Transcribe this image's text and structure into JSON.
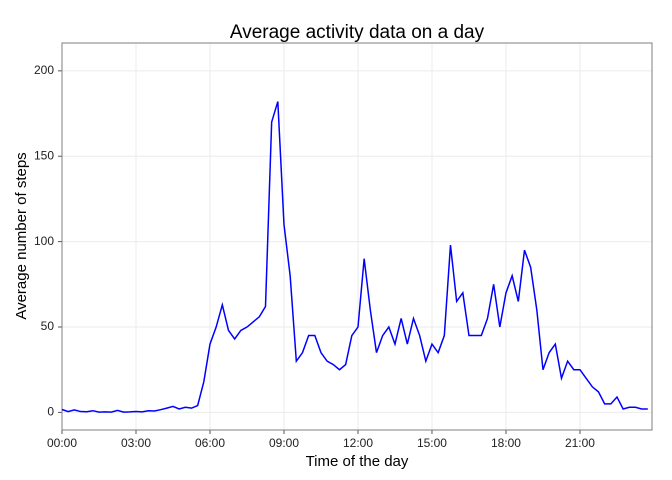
{
  "chart_data": {
    "type": "line",
    "title": "Average activity data on a day",
    "x_label": "Time of the day",
    "y_label": "Average number of steps",
    "x": [
      0,
      0.25,
      0.5,
      0.75,
      1,
      1.25,
      1.5,
      1.75,
      2,
      2.25,
      2.5,
      2.75,
      3,
      3.25,
      3.5,
      3.75,
      4,
      4.25,
      4.5,
      4.75,
      5,
      5.25,
      5.5,
      5.75,
      6,
      6.25,
      6.5,
      6.75,
      7,
      7.25,
      7.5,
      7.75,
      8,
      8.25,
      8.5,
      8.75,
      9,
      9.25,
      9.5,
      9.75,
      10,
      10.25,
      10.5,
      10.75,
      11,
      11.25,
      11.5,
      11.75,
      12,
      12.25,
      12.5,
      12.75,
      13,
      13.25,
      13.5,
      13.75,
      14,
      14.25,
      14.5,
      14.75,
      15,
      15.25,
      15.5,
      15.75,
      16,
      16.25,
      16.5,
      16.75,
      17,
      17.25,
      17.5,
      17.75,
      18,
      18.25,
      18.5,
      18.75,
      19,
      19.25,
      19.5,
      19.75,
      20,
      20.25,
      20.5,
      20.75,
      21,
      21.25,
      21.5,
      21.75,
      22,
      22.25,
      22.5,
      22.75,
      23,
      23.25,
      23.5,
      23.75
    ],
    "series": [
      {
        "name": "Average number of steps",
        "color": "#0000ff",
        "values": [
          1.7,
          0.5,
          1.5,
          0.5,
          0.4,
          1,
          0.2,
          0.3,
          0.2,
          1.2,
          0.2,
          0.3,
          0.5,
          0.3,
          1,
          0.8,
          1.6,
          2.5,
          3.5,
          2,
          3,
          2.5,
          4,
          18,
          40,
          50,
          63,
          48,
          43,
          48,
          50,
          53,
          56,
          62,
          170,
          182,
          110,
          80,
          30,
          35,
          45,
          45,
          35,
          30,
          28,
          25,
          28,
          45,
          50,
          90,
          60,
          35,
          45,
          50,
          40,
          55,
          40,
          55,
          45,
          30,
          40,
          35,
          45,
          98,
          65,
          70,
          45,
          45,
          45,
          55,
          75,
          50,
          70,
          80,
          65,
          95,
          85,
          60,
          25,
          35,
          40,
          20,
          30,
          25,
          25,
          20,
          15,
          12,
          5,
          5,
          9,
          2,
          3,
          3,
          2,
          2
        ]
      }
    ],
    "xlim": [
      0,
      23.92
    ],
    "ylim": [
      -10.3,
      216.3
    ],
    "xticks": [
      {
        "value": 0,
        "label": "00:00"
      },
      {
        "value": 3,
        "label": "03:00"
      },
      {
        "value": 6,
        "label": "06:00"
      },
      {
        "value": 9,
        "label": "09:00"
      },
      {
        "value": 12,
        "label": "12:00"
      },
      {
        "value": 15,
        "label": "15:00"
      },
      {
        "value": 18,
        "label": "18:00"
      },
      {
        "value": 21,
        "label": "21:00"
      }
    ],
    "yticks": [
      0,
      50,
      100,
      150,
      200
    ],
    "grid": true
  }
}
